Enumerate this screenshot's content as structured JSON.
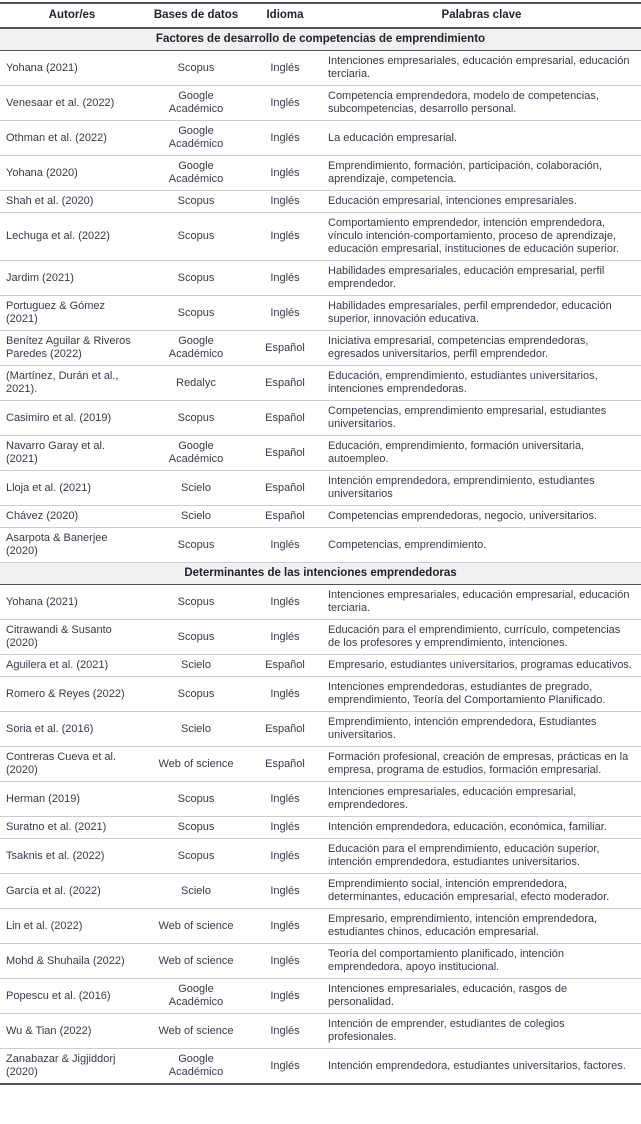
{
  "table": {
    "headers": [
      "Autor/es",
      "Bases de datos",
      "Idioma",
      "Palabras clave"
    ],
    "sections": [
      {
        "title": "Factores de desarrollo de competencias de emprendimiento",
        "rows": [
          {
            "autor": "Yohana (2021)",
            "base": "Scopus",
            "idioma": "Inglés",
            "palabras": "Intenciones empresariales, educación empresarial, educación terciaria."
          },
          {
            "autor": "Venesaar et al. (2022)",
            "base": "Google Académico",
            "idioma": "Inglés",
            "palabras": "Competencia emprendedora, modelo de competencias, subcompetencias, desarrollo personal."
          },
          {
            "autor": "Othman et al. (2022)",
            "base": "Google Académico",
            "idioma": "Inglés",
            "palabras": "La educación empresarial."
          },
          {
            "autor": "Yohana (2020)",
            "base": "Google Académico",
            "idioma": "Inglés",
            "palabras": "Emprendimiento, formación, participación, colaboración, aprendizaje, competencia."
          },
          {
            "autor": "Shah et al. (2020)",
            "base": "Scopus",
            "idioma": "Inglés",
            "palabras": "Educación empresarial, intenciones empresariales."
          },
          {
            "autor": "Lechuga et al. (2022)",
            "base": "Scopus",
            "idioma": "Inglés",
            "palabras": "Comportamiento emprendedor, intención emprendedora, vínculo intención-comportamiento, proceso de aprendizaje, educación empresarial, instituciones de educación superior."
          },
          {
            "autor": "Jardim (2021)",
            "base": "Scopus",
            "idioma": "Inglés",
            "palabras": "Habilidades empresariales, educación empresarial, perfil emprendedor."
          },
          {
            "autor": "Portuguez & Gómez (2021)",
            "base": "Scopus",
            "idioma": "Inglés",
            "palabras": "Habilidades empresariales, perfil emprendedor, educación superior, innovación educativa."
          },
          {
            "autor": "Benítez Aguilar & Riveros Paredes (2022)",
            "base": "Google Académico",
            "idioma": "Español",
            "palabras": "Iniciativa empresarial, competencias emprendedoras, egresados universitarios, perfil emprendedor."
          },
          {
            "autor": "(Martínez, Durán et al., 2021).",
            "base": "Redalyc",
            "idioma": "Español",
            "palabras": "Educación, emprendimiento, estudiantes universitarios, intenciones emprendedoras."
          },
          {
            "autor": "Casimiro et al. (2019)",
            "base": "Scopus",
            "idioma": "Español",
            "palabras": "Competencias, emprendimiento empresarial, estudiantes universitarios."
          },
          {
            "autor": "Navarro Garay et al. (2021)",
            "base": "Google Académico",
            "idioma": "Español",
            "palabras": "Educación, emprendimiento, formación universitaria, autoempleo."
          },
          {
            "autor": "Lloja et al. (2021)",
            "base": "Scielo",
            "idioma": "Español",
            "palabras": "Intención emprendedora, emprendimiento, estudiantes universitarios"
          },
          {
            "autor": "Chávez (2020)",
            "base": "Scielo",
            "idioma": "Español",
            "palabras": "Competencias emprendedoras, negocio, universitarios."
          },
          {
            "autor": "Asarpota & Banerjee (2020)",
            "base": "Scopus",
            "idioma": "Inglés",
            "palabras": "Competencias, emprendimiento."
          }
        ]
      },
      {
        "title": "Determinantes de las intenciones emprendedoras",
        "rows": [
          {
            "autor": "Yohana (2021)",
            "base": "Scopus",
            "idioma": "Inglés",
            "palabras": "Intenciones empresariales, educación empresarial, educación terciaria."
          },
          {
            "autor": "Citrawandi & Susanto (2020)",
            "base": "Scopus",
            "idioma": "Inglés",
            "palabras": "Educación para el emprendimiento, currículo, competencias de los profesores y emprendimiento, intenciones."
          },
          {
            "autor": "Aguilera et al. (2021)",
            "base": "Scielo",
            "idioma": "Español",
            "palabras": "Empresario, estudiantes universitarios, programas educativos."
          },
          {
            "autor": "Romero & Reyes (2022)",
            "base": "Scopus",
            "idioma": "Inglés",
            "palabras": "Intenciones emprendedoras, estudiantes de pregrado, emprendimiento, Teoría del Comportamiento Planificado."
          },
          {
            "autor": "Soria et al. (2016)",
            "base": "Scielo",
            "idioma": "Español",
            "palabras": "Emprendimiento, intención emprendedora, Estudiantes universitarios."
          },
          {
            "autor": "Contreras Cueva et al. (2020)",
            "base": "Web of science",
            "idioma": "Español",
            "palabras": "Formación profesional, creación de empresas, prácticas en la empresa, programa de estudios, formación empresarial."
          },
          {
            "autor": "Herman (2019)",
            "base": "Scopus",
            "idioma": "Inglés",
            "palabras": "Intenciones empresariales, educación empresarial, emprendedores."
          },
          {
            "autor": "Suratno et al. (2021)",
            "base": "Scopus",
            "idioma": "Inglés",
            "palabras": "Intención emprendedora, educación, económica, familiar."
          },
          {
            "autor": "Tsaknis et al. (2022)",
            "base": "Scopus",
            "idioma": "Inglés",
            "palabras": "Educación para el emprendimiento, educación superior, intención emprendedora, estudiantes universitarios."
          },
          {
            "autor": "García et al. (2022)",
            "base": "Scielo",
            "idioma": "Inglés",
            "palabras": "Emprendimiento social, intención emprendedora, determinantes, educación empresarial, efecto moderador."
          },
          {
            "autor": "Lin et al. (2022)",
            "base": "Web of science",
            "idioma": "Inglés",
            "palabras": "Empresario, emprendimiento, intención emprendedora, estudiantes chinos, educación empresarial."
          },
          {
            "autor": "Mohd & Shuhaila (2022)",
            "base": "Web of science",
            "idioma": "Inglés",
            "palabras": "Teoría del comportamiento planificado, intención emprendedora, apoyo institucional."
          },
          {
            "autor": "Popescu et al. (2016)",
            "base": "Google Académico",
            "idioma": "Inglés",
            "palabras": "Intenciones empresariales, educación, rasgos de personalidad."
          },
          {
            "autor": "Wu & Tian (2022)",
            "base": "Web of science",
            "idioma": "Inglés",
            "palabras": "Intención de emprender, estudiantes de colegios profesionales."
          },
          {
            "autor": "Zanabazar & Jigjiddorj (2020)",
            "base": "Google Académico",
            "idioma": "Inglés",
            "palabras": "Intención emprendedora, estudiantes universitarios, factores."
          }
        ]
      }
    ]
  }
}
